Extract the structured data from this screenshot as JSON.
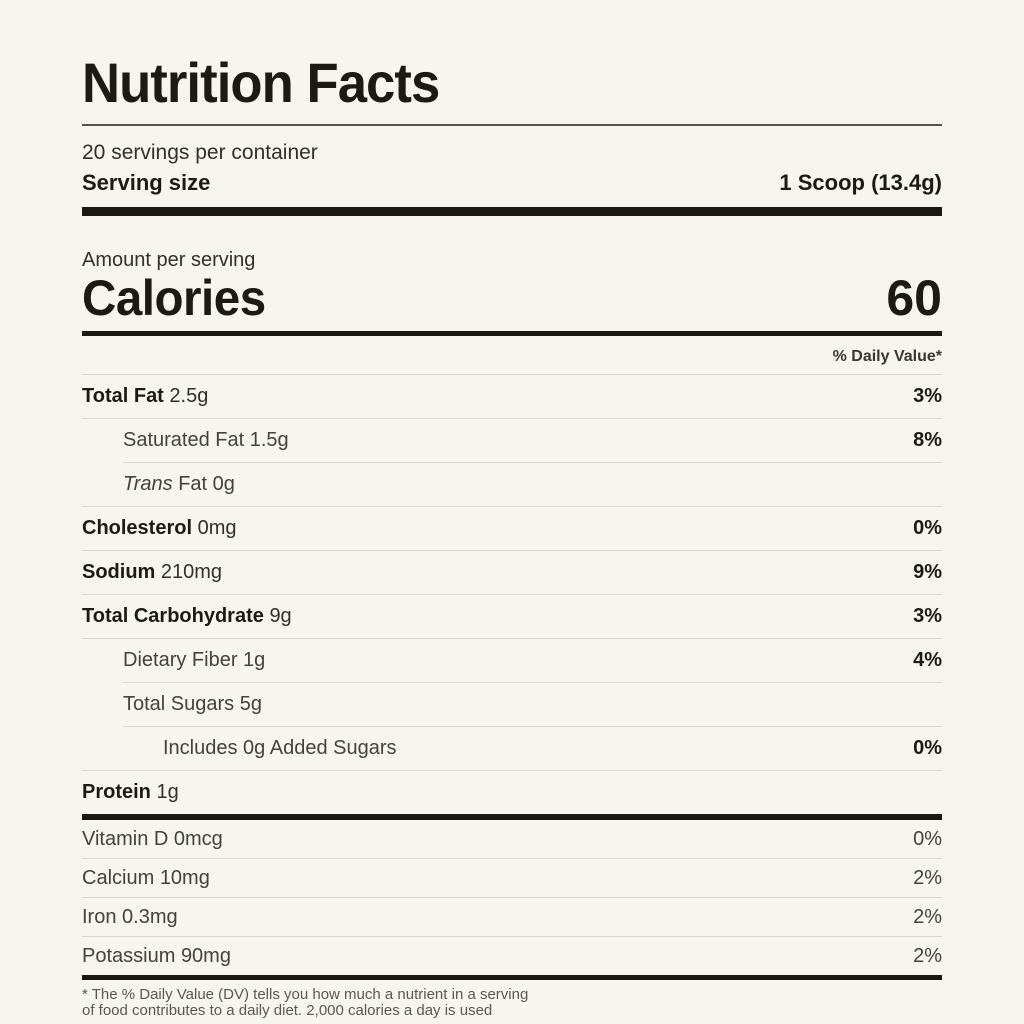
{
  "theme": {
    "background": "#f7f5ef",
    "ink": "#1d1a15",
    "muted_text": "#45423c",
    "divider": "#dbd7cf"
  },
  "label": {
    "title": "Nutrition Facts",
    "servings_per_container": "20 servings per container",
    "serving_size": {
      "label": "Serving size",
      "value": "1 Scoop (13.4g)"
    },
    "amount_per_serving": "Amount per serving",
    "calories": {
      "label": "Calories",
      "value": "60"
    },
    "daily_value_header": "% Daily Value*",
    "nutrients": [
      {
        "name": "Total Fat",
        "amount": "2.5g",
        "dv": "3%"
      },
      {
        "name": "Saturated Fat",
        "amount": "1.5g",
        "dv": "8%"
      },
      {
        "name_italic": "Trans",
        "name": "Fat",
        "amount": "0g",
        "dv": ""
      },
      {
        "name": "Cholesterol",
        "amount": "0mg",
        "dv": "0%"
      },
      {
        "name": "Sodium",
        "amount": "210mg",
        "dv": "9%"
      },
      {
        "name": "Total Carbohydrate",
        "amount": "9g",
        "dv": "3%"
      },
      {
        "name": "Dietary Fiber",
        "amount": "1g",
        "dv": "4%"
      },
      {
        "name": "Total Sugars",
        "amount": "5g",
        "dv": ""
      },
      {
        "name": "Includes 0g Added Sugars",
        "amount": "",
        "dv": "0%"
      },
      {
        "name": "Protein",
        "amount": "1g",
        "dv": ""
      }
    ],
    "micronutrients": [
      {
        "name": "Vitamin D",
        "amount": "0mcg",
        "dv": "0%"
      },
      {
        "name": "Calcium",
        "amount": "10mg",
        "dv": "2%"
      },
      {
        "name": "Iron",
        "amount": "0.3mg",
        "dv": "2%"
      },
      {
        "name": "Potassium",
        "amount": "90mg",
        "dv": "2%"
      }
    ],
    "footnote": {
      "line1": "* The % Daily Value (DV) tells you how much a nutrient in a serving",
      "line2": "of food contributes to a daily diet. 2,000 calories a day is used"
    }
  }
}
